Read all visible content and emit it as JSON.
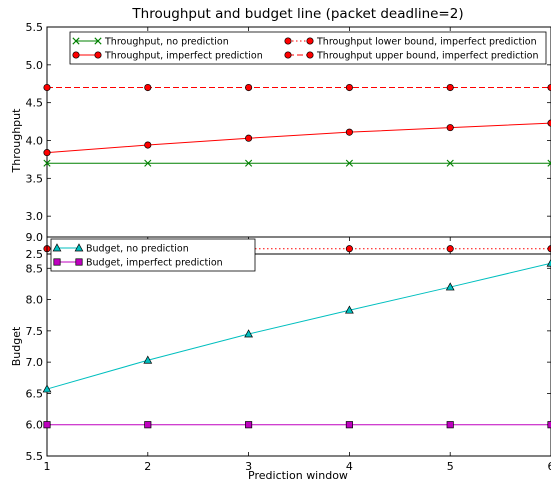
{
  "chart_data": [
    {
      "type": "line",
      "title": "Throughput and budget line (packet deadline=2)",
      "xlabel": "",
      "ylabel": "Throughput",
      "x": [
        1,
        2,
        3,
        4,
        5,
        6
      ],
      "xlim": [
        1,
        6
      ],
      "ylim": [
        2.5,
        5.5
      ],
      "yticks": [
        "2.5",
        "3.0",
        "3.5",
        "4.0",
        "4.5",
        "5.0",
        "5.5"
      ],
      "grid": false,
      "legend_position": "top",
      "series": [
        {
          "name": "Throughput, no prediction",
          "values": [
            3.7,
            3.7,
            3.7,
            3.7,
            3.7,
            3.7
          ],
          "color": "#008000",
          "marker": "x",
          "linestyle": "solid"
        },
        {
          "name": "Throughput, imperfect prediction",
          "values": [
            3.84,
            3.94,
            4.03,
            4.11,
            4.17,
            4.23
          ],
          "color": "#ff0000",
          "marker": "circle",
          "linestyle": "solid"
        },
        {
          "name": "Throughput lower bound, imperfect prediction",
          "values": [
            2.57,
            2.57,
            2.57,
            2.57,
            2.57,
            2.57
          ],
          "color": "#ff0000",
          "marker": "circle",
          "linestyle": "dotted"
        },
        {
          "name": "Throughput upper bound, imperfect prediction",
          "values": [
            4.7,
            4.7,
            4.7,
            4.7,
            4.7,
            4.7
          ],
          "color": "#ff0000",
          "marker": "circle",
          "linestyle": "dashed"
        }
      ]
    },
    {
      "type": "line",
      "title": "",
      "xlabel": "Prediction window",
      "ylabel": "Budget",
      "x": [
        1,
        2,
        3,
        4,
        5,
        6
      ],
      "xlim": [
        1,
        6
      ],
      "ylim": [
        5.5,
        9.0
      ],
      "xticks": [
        "1",
        "2",
        "3",
        "4",
        "5",
        "6"
      ],
      "yticks": [
        "5.5",
        "6.0",
        "6.5",
        "7.0",
        "7.5",
        "8.0",
        "8.5",
        "9.0"
      ],
      "grid": false,
      "legend_position": "top-left",
      "series": [
        {
          "name": "Budget, no prediction",
          "values": [
            6.57,
            7.03,
            7.45,
            7.83,
            8.2,
            8.58
          ],
          "color": "#00bfbf",
          "marker": "triangle",
          "linestyle": "solid"
        },
        {
          "name": "Budget, imperfect prediction",
          "values": [
            6.0,
            6.0,
            6.0,
            6.0,
            6.0,
            6.0
          ],
          "color": "#bf00bf",
          "marker": "square",
          "linestyle": "solid"
        }
      ]
    }
  ]
}
